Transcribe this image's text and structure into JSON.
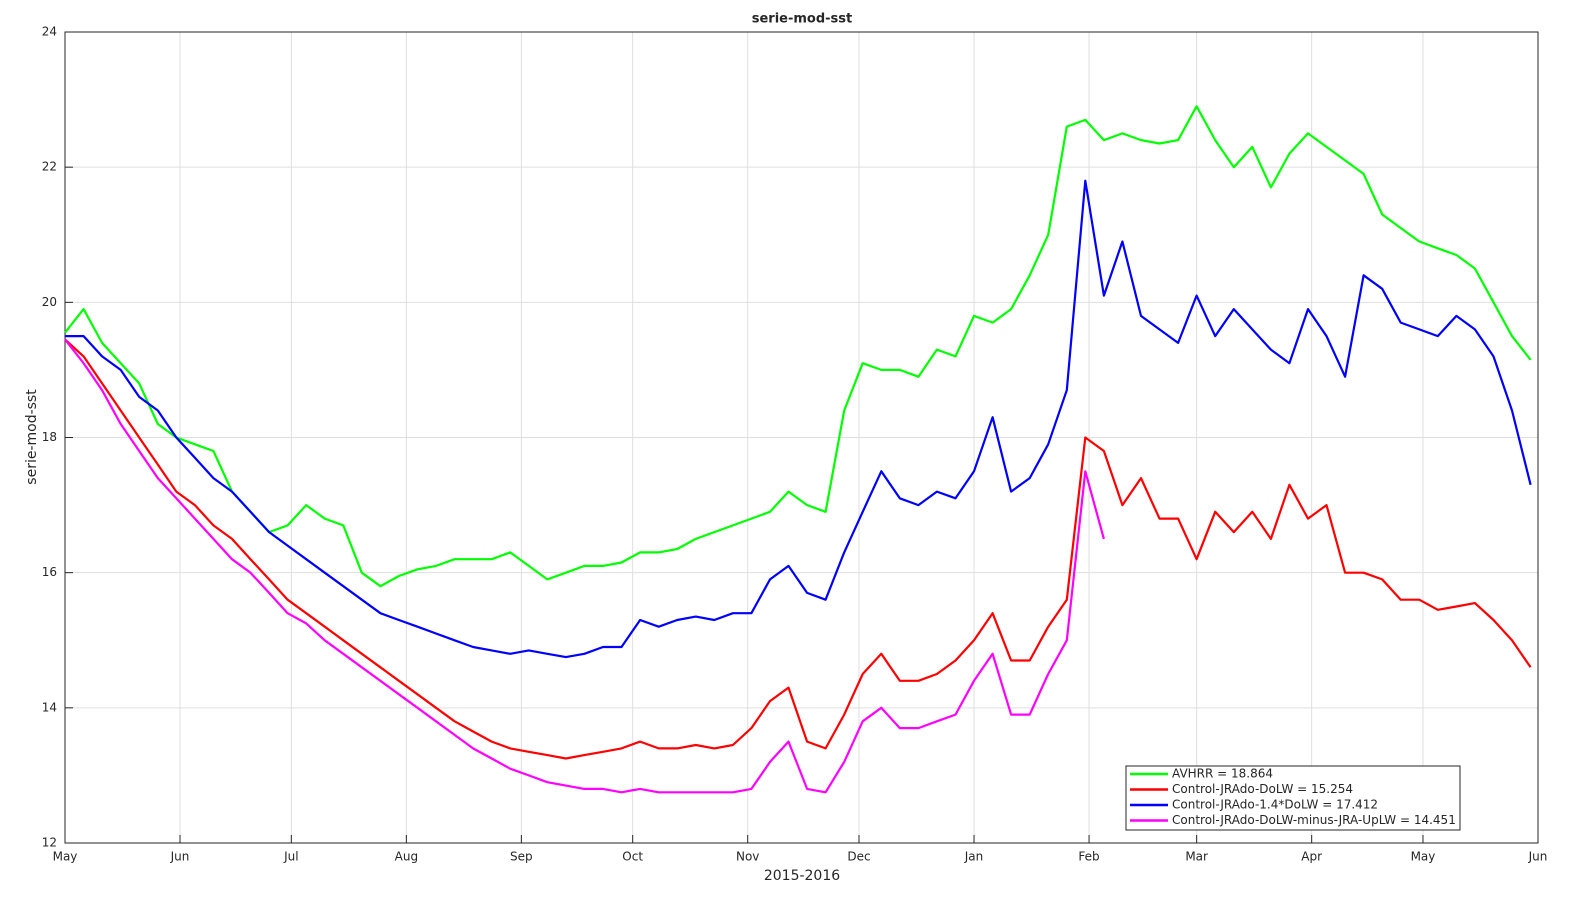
{
  "chart_data": {
    "type": "line",
    "title": "serie-mod-sst",
    "x_label": "2015-2016",
    "y_label": "serie-mod-sst",
    "x": [
      0,
      5,
      10,
      15,
      20,
      25,
      30,
      35,
      40,
      45,
      50,
      55,
      60,
      65,
      70,
      75,
      80,
      85,
      90,
      95,
      100,
      105,
      110,
      115,
      120,
      125,
      130,
      135,
      140,
      145,
      150,
      155,
      160,
      165,
      170,
      175,
      180,
      185,
      190,
      195,
      200,
      205,
      210,
      215,
      220,
      225,
      230,
      235,
      240,
      245,
      250,
      255,
      260,
      265,
      270,
      275,
      280,
      285,
      290,
      295,
      300,
      305,
      310,
      315,
      320,
      325,
      330,
      335,
      340,
      345,
      350,
      355,
      360,
      365,
      370,
      375,
      380,
      385,
      390,
      395
    ],
    "series": [
      {
        "name": "AVHRR = 18.864",
        "color": "#00ff00",
        "values": [
          19.55,
          19.9,
          19.4,
          19.1,
          18.8,
          18.2,
          18.0,
          17.9,
          17.8,
          17.2,
          16.9,
          16.6,
          16.7,
          17.0,
          16.8,
          16.7,
          16.0,
          15.8,
          15.95,
          16.05,
          16.1,
          16.2,
          16.2,
          16.2,
          16.3,
          16.1,
          15.9,
          16.0,
          16.1,
          16.1,
          16.15,
          16.3,
          16.3,
          16.35,
          16.5,
          16.6,
          16.7,
          16.8,
          16.9,
          17.2,
          17.0,
          16.9,
          18.4,
          19.1,
          19.0,
          19.0,
          18.9,
          19.3,
          19.2,
          19.8,
          19.7,
          19.9,
          20.4,
          21.0,
          22.6,
          22.7,
          22.4,
          22.5,
          22.4,
          22.35,
          22.4,
          22.9,
          22.4,
          22.0,
          22.3,
          21.7,
          22.2,
          22.5,
          22.3,
          22.1,
          21.9,
          21.3,
          21.1,
          20.9,
          20.8,
          20.7,
          20.5,
          20.0,
          19.5,
          19.15
        ]
      },
      {
        "name": "Control-JRAdo-DoLW = 15.254",
        "color": "#ff0000",
        "values": [
          19.45,
          19.2,
          18.8,
          18.4,
          18.0,
          17.6,
          17.2,
          17.0,
          16.7,
          16.5,
          16.2,
          15.9,
          15.6,
          15.4,
          15.2,
          15.0,
          14.8,
          14.6,
          14.4,
          14.2,
          14.0,
          13.8,
          13.65,
          13.5,
          13.4,
          13.35,
          13.3,
          13.25,
          13.3,
          13.35,
          13.4,
          13.5,
          13.4,
          13.4,
          13.45,
          13.4,
          13.45,
          13.7,
          14.1,
          14.3,
          13.5,
          13.4,
          13.9,
          14.5,
          14.8,
          14.4,
          14.4,
          14.5,
          14.7,
          15.0,
          15.4,
          14.7,
          14.7,
          15.2,
          15.6,
          18.0,
          17.8,
          17.0,
          17.4,
          16.8,
          16.8,
          16.2,
          16.9,
          16.6,
          16.9,
          16.5,
          17.3,
          16.8,
          17.0,
          16.0,
          16.0,
          15.9,
          15.6,
          15.6,
          15.45,
          15.5,
          15.55,
          15.3,
          15.0,
          14.6
        ]
      },
      {
        "name": "Control-JRAdo-1.4*DoLW = 17.412",
        "color": "#0000ff",
        "values": [
          19.5,
          19.5,
          19.2,
          19.0,
          18.6,
          18.4,
          18.0,
          17.7,
          17.4,
          17.2,
          16.9,
          16.6,
          16.4,
          16.2,
          16.0,
          15.8,
          15.6,
          15.4,
          15.3,
          15.2,
          15.1,
          15.0,
          14.9,
          14.85,
          14.8,
          14.85,
          14.8,
          14.75,
          14.8,
          14.9,
          14.9,
          15.3,
          15.2,
          15.3,
          15.35,
          15.3,
          15.4,
          15.4,
          15.9,
          16.1,
          15.7,
          15.6,
          16.3,
          16.9,
          17.5,
          17.1,
          17.0,
          17.2,
          17.1,
          17.5,
          18.3,
          17.2,
          17.4,
          17.9,
          18.7,
          21.8,
          20.1,
          20.9,
          19.8,
          19.6,
          19.4,
          20.1,
          19.5,
          19.9,
          19.6,
          19.3,
          19.1,
          19.9,
          19.5,
          18.9,
          20.4,
          20.2,
          19.7,
          19.6,
          19.5,
          19.8,
          19.6,
          19.2,
          18.4,
          17.3
        ]
      },
      {
        "name": "Control-JRAdo-DoLW-minus-JRA-UpLW = 14.451",
        "color": "#ff00ff",
        "values": [
          19.45,
          19.1,
          18.7,
          18.2,
          17.8,
          17.4,
          17.1,
          16.8,
          16.5,
          16.2,
          16.0,
          15.7,
          15.4,
          15.25,
          15.0,
          14.8,
          14.6,
          14.4,
          14.2,
          14.0,
          13.8,
          13.6,
          13.4,
          13.25,
          13.1,
          13.0,
          12.9,
          12.85,
          12.8,
          12.8,
          12.75,
          12.8,
          12.75,
          12.75,
          12.75,
          12.75,
          12.75,
          12.8,
          13.2,
          13.5,
          12.8,
          12.75,
          13.2,
          13.8,
          14.0,
          13.7,
          13.7,
          13.8,
          13.9,
          14.4,
          14.8,
          13.9,
          13.9,
          14.5,
          15.0,
          17.5,
          16.5,
          null,
          null,
          null,
          null,
          null,
          null,
          null,
          null,
          null,
          null,
          null,
          null,
          null,
          null,
          null,
          null,
          null,
          null,
          null,
          null,
          null,
          null,
          null
        ]
      }
    ],
    "xlim": [
      0,
      397
    ],
    "xticks": [
      {
        "value": 0,
        "label": "May"
      },
      {
        "value": 31,
        "label": "Jun"
      },
      {
        "value": 61,
        "label": "Jul"
      },
      {
        "value": 92,
        "label": "Aug"
      },
      {
        "value": 123,
        "label": "Sep"
      },
      {
        "value": 153,
        "label": "Oct"
      },
      {
        "value": 184,
        "label": "Nov"
      },
      {
        "value": 214,
        "label": "Dec"
      },
      {
        "value": 245,
        "label": "Jan"
      },
      {
        "value": 276,
        "label": "Feb"
      },
      {
        "value": 305,
        "label": "Mar"
      },
      {
        "value": 336,
        "label": "Apr"
      },
      {
        "value": 366,
        "label": "May"
      },
      {
        "value": 397,
        "label": "Jun"
      }
    ],
    "ylim": [
      12,
      24
    ],
    "yticks": [
      12,
      14,
      16,
      18,
      20,
      22,
      24
    ],
    "grid": true,
    "legend": "lower right"
  }
}
